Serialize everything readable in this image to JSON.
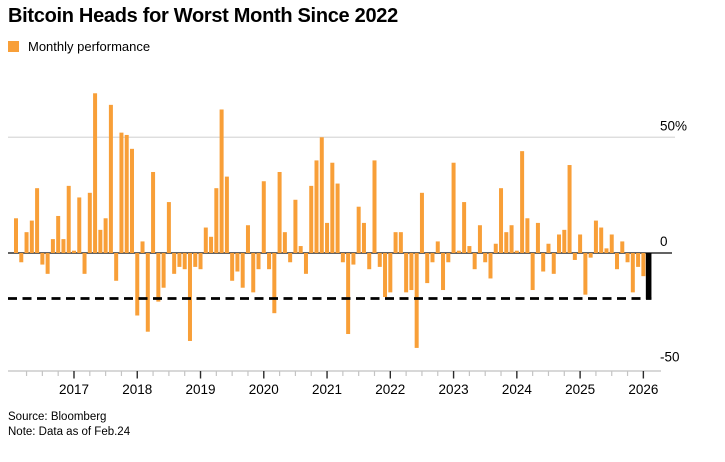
{
  "header": {
    "title": "Bitcoin Heads for Worst Month Since 2022",
    "legend": {
      "label": "Monthly performance",
      "swatch_color": "#F89F38"
    }
  },
  "footer": {
    "source": "Source: Bloomberg",
    "note": "Note: Data as of Feb.24"
  },
  "chart_data": {
    "type": "bar",
    "title": "Bitcoin Heads for Worst Month Since 2022",
    "series_name": "Monthly performance",
    "unit": "%",
    "start_month": "2016-02",
    "end_month": "2026-02",
    "values": [
      15,
      -4,
      9,
      14,
      28,
      -5,
      -9,
      6,
      16,
      6,
      29,
      1,
      24,
      -9,
      26,
      69,
      10,
      15,
      64,
      -12,
      52,
      51,
      45,
      -27,
      5,
      -34,
      35,
      -21,
      -15,
      22,
      -9,
      -6,
      -7,
      -38,
      -6,
      -7,
      11,
      7,
      28,
      62,
      33,
      -12,
      -8,
      -15,
      12,
      -17,
      -7,
      31,
      -7,
      -26,
      35,
      9,
      -4,
      23,
      3,
      -9,
      29,
      40,
      50,
      13,
      39,
      30,
      -4,
      -35,
      -5,
      20,
      13,
      -7,
      40,
      -6,
      -19,
      -17,
      9,
      9,
      -17,
      -16,
      -41,
      26,
      -13,
      -4,
      5,
      -16,
      -4,
      39,
      1,
      22,
      3,
      -7,
      12,
      -4,
      -11,
      4,
      28,
      9,
      12,
      1,
      44,
      15,
      -16,
      13,
      -8,
      4,
      -9,
      8,
      10,
      38,
      -3,
      8,
      -18,
      -2,
      14,
      11,
      2,
      8,
      -7,
      5,
      -4,
      -17,
      -6,
      -10,
      -20
    ],
    "bar_color": "#F89F38",
    "highlight_last_bar": true,
    "highlight_color": "#000000",
    "reference_line": {
      "value": -20,
      "style": "dashed",
      "color": "#000000"
    },
    "ylim": [
      -50,
      72
    ],
    "yticks": [
      {
        "value": 50,
        "label": "50%"
      },
      {
        "value": 0,
        "label": "0"
      },
      {
        "value": -50,
        "label": "-50"
      }
    ],
    "x_tick_years": [
      "2017",
      "2018",
      "2019",
      "2020",
      "2021",
      "2022",
      "2023",
      "2024",
      "2025",
      "2026"
    ],
    "grid": "horizontal-50-only",
    "legend_position": "top-left"
  }
}
